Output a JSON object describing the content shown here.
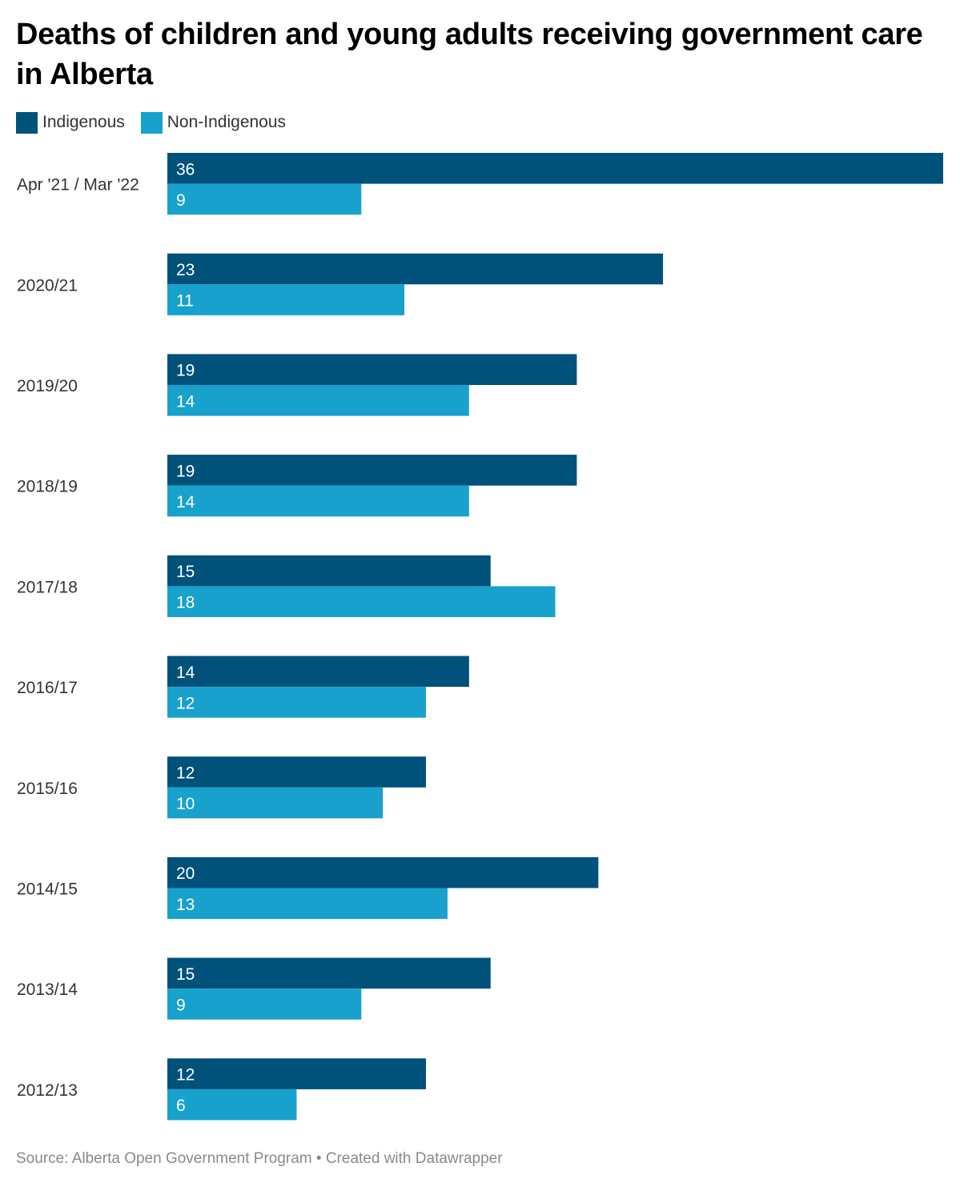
{
  "title": "Deaths of children and young adults receiving government care in Alberta",
  "legend": [
    {
      "label": "Indigenous",
      "color": "#01527b"
    },
    {
      "label": "Non-Indigenous",
      "color": "#18a1cd"
    }
  ],
  "source": "Source: Alberta Open Government Program • Created with Datawrapper",
  "chart_data": {
    "type": "bar",
    "orientation": "horizontal",
    "title": "Deaths of children and young adults receiving government care in Alberta",
    "categories": [
      "Apr '21 / Mar '22",
      "2020/21",
      "2019/20",
      "2018/19",
      "2017/18",
      "2016/17",
      "2015/16",
      "2014/15",
      "2013/14",
      "2012/13"
    ],
    "series": [
      {
        "name": "Indigenous",
        "color": "#01527b",
        "values": [
          36,
          23,
          19,
          19,
          15,
          14,
          12,
          20,
          15,
          12
        ]
      },
      {
        "name": "Non-Indigenous",
        "color": "#18a1cd",
        "values": [
          9,
          11,
          14,
          14,
          18,
          12,
          10,
          13,
          9,
          6
        ]
      }
    ],
    "xlim": [
      0,
      36
    ],
    "grid": false,
    "legend_position": "top-left",
    "data_labels": "inside-left"
  }
}
